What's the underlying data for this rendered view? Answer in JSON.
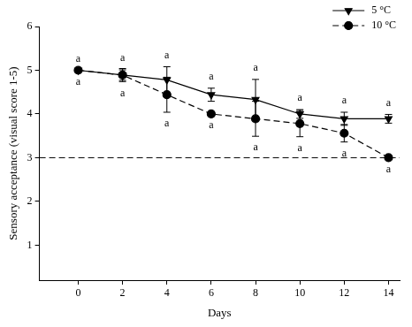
{
  "chart_data": {
    "type": "line",
    "x_label": "Days",
    "y_label": "Sensory acceptance (visual score 1-5)",
    "x": [
      0,
      2,
      4,
      6,
      8,
      10,
      12,
      14
    ],
    "series": [
      {
        "name": "5 °C",
        "color": "#000000",
        "marker": "triangle-down",
        "line_style": "solid",
        "values": [
          5,
          4.89,
          4.78,
          4.44,
          4.33,
          4.0,
          3.89,
          3.89
        ],
        "errors": [
          0,
          0.12,
          0.3,
          0.15,
          0.46,
          0.1,
          0.15,
          0.1
        ],
        "letters": [
          "a",
          "a",
          "a",
          "a",
          "a",
          "a",
          "a",
          "a"
        ]
      },
      {
        "name": "10 °C",
        "color": "#000000",
        "marker": "circle",
        "line_style": "dashed",
        "values": [
          5,
          4.89,
          4.44,
          4.0,
          3.89,
          3.78,
          3.56,
          3.0
        ],
        "errors": [
          0,
          0.15,
          0.4,
          0,
          0.4,
          0.3,
          0.2,
          0
        ],
        "letters": [
          "a",
          "a",
          "a",
          "a",
          "a",
          "a",
          "a",
          "a"
        ]
      }
    ],
    "xlim": [
      -1.75,
      14.5
    ],
    "xticks": [
      0,
      2,
      4,
      6,
      8,
      10,
      12,
      14
    ],
    "ylim": [
      0.2,
      6
    ],
    "yticks": [
      1,
      2,
      3,
      4,
      5,
      6
    ],
    "hline": 3,
    "legend": "upper right",
    "grid": false
  }
}
